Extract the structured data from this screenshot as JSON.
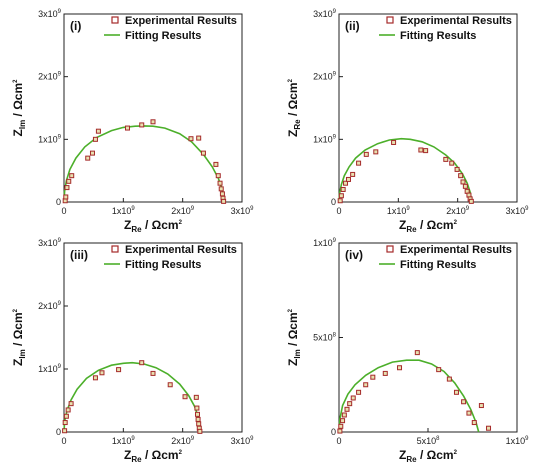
{
  "chart_data": [
    {
      "type": "scatter",
      "panel_label": "(i)",
      "xlabel": "Z_Re / Ωcm²",
      "ylabel": "Z_Im / Ωcm²",
      "xlabel_main": "Z",
      "xlabel_sub": "Re",
      "xlabel_unit": "/ Ωcm",
      "ylabel_main": "Z",
      "ylabel_sub": "Im",
      "ylabel_unit": "/ Ωcm",
      "sq": "2",
      "xlim": [
        0,
        3000000000
      ],
      "ylim": [
        0,
        3000000000
      ],
      "x_ticks": [
        {
          "value": 0,
          "mant": "0",
          "exp": ""
        },
        {
          "value": 1000000000,
          "mant": "1x10",
          "exp": "9"
        },
        {
          "value": 2000000000,
          "mant": "2x10",
          "exp": "9"
        },
        {
          "value": 3000000000,
          "mant": "3x10",
          "exp": "9"
        }
      ],
      "y_ticks": [
        {
          "value": 0,
          "mant": "0",
          "exp": ""
        },
        {
          "value": 1000000000,
          "mant": "1x10",
          "exp": "9"
        },
        {
          "value": 2000000000,
          "mant": "2x10",
          "exp": "9"
        },
        {
          "value": 3000000000,
          "mant": "3x10",
          "exp": "9"
        }
      ],
      "legend": [
        "Experimental Results",
        "Fitting Results"
      ],
      "series": [
        {
          "name": "Experimental Results",
          "color": "#a52a2a",
          "x": [
            20000000,
            30000000,
            50000000,
            80000000,
            130000000,
            400000000,
            480000000,
            530000000,
            580000000,
            1070000000,
            1310000000,
            1500000000,
            2140000000,
            2270000000,
            2350000000,
            2560000000,
            2600000000,
            2630000000,
            2650000000,
            2670000000,
            2680000000,
            2690000000
          ],
          "y": [
            20000000,
            80000000,
            230000000,
            330000000,
            420000000,
            700000000,
            780000000,
            1000000000,
            1130000000,
            1180000000,
            1230000000,
            1280000000,
            1010000000,
            1020000000,
            780000000,
            600000000,
            420000000,
            300000000,
            210000000,
            130000000,
            60000000,
            10000000
          ]
        },
        {
          "name": "Fitting Results",
          "color": "#4caf2a",
          "x": [
            0,
            10000000,
            40000000,
            100000000,
            200000000,
            350000000,
            550000000,
            800000000,
            1000000000,
            1200000000,
            1350000000,
            1500000000,
            1700000000,
            1950000000,
            2150000000,
            2350000000,
            2500000000,
            2600000000,
            2660000000,
            2690000000,
            2700000000
          ],
          "y": [
            0,
            170000000,
            340000000,
            520000000,
            700000000,
            880000000,
            1030000000,
            1140000000,
            1190000000,
            1210000000,
            1215000000,
            1210000000,
            1180000000,
            1090000000,
            960000000,
            760000000,
            560000000,
            380000000,
            220000000,
            100000000,
            0
          ]
        }
      ]
    },
    {
      "type": "scatter",
      "panel_label": "(ii)",
      "xlabel": "Z_Re / Ωcm²",
      "ylabel": "Z_Re / Ωcm²",
      "xlabel_main": "Z",
      "xlabel_sub": "Re",
      "xlabel_unit": "/ Ωcm",
      "ylabel_main": "Z",
      "ylabel_sub": "Re",
      "ylabel_unit": "/ Ωcm",
      "sq": "2",
      "xlim": [
        0,
        3000000000
      ],
      "ylim": [
        0,
        3000000000
      ],
      "x_ticks": [
        {
          "value": 0,
          "mant": "0",
          "exp": ""
        },
        {
          "value": 1000000000,
          "mant": "1x10",
          "exp": "9"
        },
        {
          "value": 2000000000,
          "mant": "2x10",
          "exp": "9"
        },
        {
          "value": 3000000000,
          "mant": "3x10",
          "exp": "9"
        }
      ],
      "y_ticks": [
        {
          "value": 0,
          "mant": "0",
          "exp": ""
        },
        {
          "value": 1000000000,
          "mant": "1x10",
          "exp": "9"
        },
        {
          "value": 2000000000,
          "mant": "2x10",
          "exp": "9"
        },
        {
          "value": 3000000000,
          "mant": "3x10",
          "exp": "9"
        }
      ],
      "legend": [
        "Experimental Results",
        "Fitting Results"
      ],
      "series": [
        {
          "name": "Experimental Results",
          "color": "#a52a2a",
          "x": [
            20000000,
            40000000,
            70000000,
            110000000,
            160000000,
            230000000,
            330000000,
            460000000,
            620000000,
            920000000,
            1380000000,
            1460000000,
            1800000000,
            1900000000,
            1990000000,
            2050000000,
            2090000000,
            2130000000,
            2160000000,
            2190000000,
            2210000000,
            2230000000
          ],
          "y": [
            20000000,
            100000000,
            200000000,
            300000000,
            360000000,
            440000000,
            620000000,
            760000000,
            800000000,
            950000000,
            830000000,
            820000000,
            680000000,
            620000000,
            520000000,
            420000000,
            320000000,
            250000000,
            170000000,
            110000000,
            50000000,
            10000000
          ]
        },
        {
          "name": "Fitting Results",
          "color": "#4caf2a",
          "x": [
            0,
            10000000,
            40000000,
            90000000,
            170000000,
            280000000,
            440000000,
            650000000,
            850000000,
            1050000000,
            1200000000,
            1400000000,
            1600000000,
            1800000000,
            1950000000,
            2080000000,
            2160000000,
            2210000000,
            2240000000
          ],
          "y": [
            0,
            140000000,
            280000000,
            420000000,
            560000000,
            700000000,
            830000000,
            930000000,
            990000000,
            1010000000,
            1000000000,
            960000000,
            880000000,
            750000000,
            620000000,
            450000000,
            300000000,
            160000000,
            0
          ]
        }
      ]
    },
    {
      "type": "scatter",
      "panel_label": "(iii)",
      "xlabel": "Z_Re / Ωcm²",
      "ylabel": "Z_Im / Ωcm²",
      "xlabel_main": "Z",
      "xlabel_sub": "Re",
      "xlabel_unit": "/ Ωcm",
      "ylabel_main": "Z",
      "ylabel_sub": "Im",
      "ylabel_unit": "/ Ωcm",
      "sq": "2",
      "xlim": [
        0,
        3000000000
      ],
      "ylim": [
        0,
        3000000000
      ],
      "x_ticks": [
        {
          "value": 0,
          "mant": "0",
          "exp": ""
        },
        {
          "value": 1000000000,
          "mant": "1x10",
          "exp": "9"
        },
        {
          "value": 2000000000,
          "mant": "2x10",
          "exp": "9"
        },
        {
          "value": 3000000000,
          "mant": "3x10",
          "exp": "9"
        }
      ],
      "y_ticks": [
        {
          "value": 0,
          "mant": "0",
          "exp": ""
        },
        {
          "value": 1000000000,
          "mant": "1x10",
          "exp": "9"
        },
        {
          "value": 2000000000,
          "mant": "2x10",
          "exp": "9"
        },
        {
          "value": 3000000000,
          "mant": "3x10",
          "exp": "9"
        }
      ],
      "legend": [
        "Experimental Results",
        "Fitting Results"
      ],
      "series": [
        {
          "name": "Experimental Results",
          "color": "#a52a2a",
          "x": [
            10000000,
            20000000,
            40000000,
            70000000,
            120000000,
            530000000,
            640000000,
            920000000,
            1310000000,
            1500000000,
            1790000000,
            2040000000,
            2230000000,
            2240000000,
            2250000000,
            2260000000,
            2270000000,
            2280000000,
            2290000000
          ],
          "y": [
            20000000,
            150000000,
            250000000,
            350000000,
            450000000,
            860000000,
            940000000,
            990000000,
            1100000000,
            930000000,
            750000000,
            560000000,
            550000000,
            380000000,
            280000000,
            200000000,
            130000000,
            60000000,
            10000000
          ]
        },
        {
          "name": "Fitting Results",
          "color": "#4caf2a",
          "x": [
            0,
            10000000,
            50000000,
            120000000,
            220000000,
            380000000,
            580000000,
            800000000,
            1000000000,
            1150000000,
            1350000000,
            1550000000,
            1750000000,
            1950000000,
            2100000000,
            2200000000,
            2260000000,
            2290000000,
            2300000000
          ],
          "y": [
            0,
            170000000,
            340000000,
            510000000,
            680000000,
            850000000,
            980000000,
            1060000000,
            1090000000,
            1100000000,
            1080000000,
            1020000000,
            920000000,
            760000000,
            580000000,
            410000000,
            250000000,
            120000000,
            0
          ]
        }
      ]
    },
    {
      "type": "scatter",
      "panel_label": "(iv)",
      "xlabel": "Z_Re / Ωcm²",
      "ylabel": "Z_Im / Ωcm²",
      "xlabel_main": "Z",
      "xlabel_sub": "Re",
      "xlabel_unit": "/ Ωcm",
      "ylabel_main": "Z",
      "ylabel_sub": "Im",
      "ylabel_unit": "/ Ωcm",
      "sq": "2",
      "xlim": [
        0,
        1000000000
      ],
      "ylim": [
        0,
        1000000000
      ],
      "x_ticks": [
        {
          "value": 0,
          "mant": "0",
          "exp": ""
        },
        {
          "value": 500000000,
          "mant": "5x10",
          "exp": "8"
        },
        {
          "value": 1000000000,
          "mant": "1x10",
          "exp": "9"
        }
      ],
      "y_ticks": [
        {
          "value": 0,
          "mant": "0",
          "exp": ""
        },
        {
          "value": 500000000,
          "mant": "5x10",
          "exp": "8"
        },
        {
          "value": 1000000000,
          "mant": "1x10",
          "exp": "9"
        }
      ],
      "legend": [
        "Experimental Results",
        "Fitting Results"
      ],
      "series": [
        {
          "name": "Experimental Results",
          "color": "#a52a2a",
          "x": [
            5000000,
            10000000,
            20000000,
            30000000,
            45000000,
            60000000,
            80000000,
            110000000,
            150000000,
            190000000,
            260000000,
            340000000,
            440000000,
            560000000,
            620000000,
            660000000,
            700000000,
            730000000,
            760000000,
            800000000,
            840000000
          ],
          "y": [
            5000000,
            30000000,
            60000000,
            90000000,
            120000000,
            150000000,
            180000000,
            210000000,
            250000000,
            290000000,
            310000000,
            340000000,
            420000000,
            330000000,
            280000000,
            210000000,
            160000000,
            100000000,
            50000000,
            140000000,
            20000000
          ]
        },
        {
          "name": "Fitting Results",
          "color": "#4caf2a",
          "x": [
            0,
            5000000,
            20000000,
            50000000,
            90000000,
            150000000,
            220000000,
            300000000,
            380000000,
            450000000,
            520000000,
            590000000,
            650000000,
            700000000,
            740000000,
            770000000,
            785000000
          ],
          "y": [
            0,
            70000000,
            140000000,
            200000000,
            250000000,
            300000000,
            340000000,
            370000000,
            380000000,
            380000000,
            360000000,
            320000000,
            260000000,
            190000000,
            120000000,
            50000000,
            0
          ]
        }
      ]
    }
  ]
}
